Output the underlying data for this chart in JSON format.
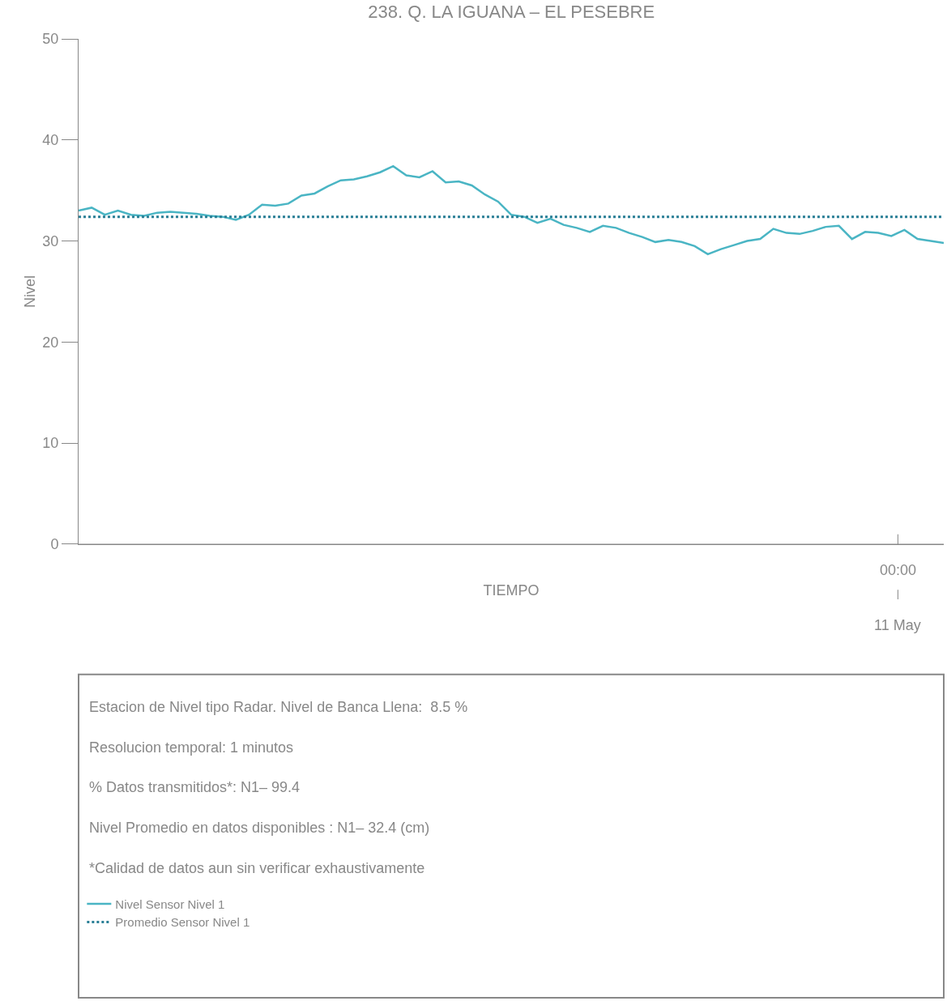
{
  "chart_data": {
    "type": "line",
    "title": "238. Q. LA IGUANA – EL PESEBRE",
    "xlabel": "TIEMPO",
    "ylabel": "Nivel",
    "categories": [
      null,
      null,
      null,
      null,
      null,
      null,
      null,
      null,
      null,
      null,
      null,
      null,
      null,
      null,
      null,
      null,
      null,
      null,
      null,
      null,
      null,
      null,
      null,
      null,
      null,
      null,
      null,
      null,
      null,
      null,
      null,
      null,
      null,
      null,
      null,
      null,
      null,
      null,
      null,
      null,
      null,
      null,
      null,
      null,
      null,
      null,
      null,
      null,
      null,
      null,
      null,
      null,
      null,
      null,
      null,
      null,
      null,
      null,
      null,
      null,
      null,
      null,
      null,
      null,
      null,
      null,
      null
    ],
    "series": [
      {
        "name": "Nivel Sensor Nivel 1",
        "color": "#4ab5c4",
        "values": [
          33.0,
          33.3,
          32.6,
          33.0,
          32.6,
          32.5,
          32.8,
          32.9,
          32.8,
          32.7,
          32.5,
          32.4,
          32.1,
          32.6,
          33.6,
          33.5,
          33.7,
          34.5,
          34.7,
          35.4,
          36.0,
          36.1,
          36.4,
          36.8,
          37.4,
          36.5,
          36.3,
          36.9,
          35.8,
          35.9,
          35.5,
          34.6,
          33.9,
          32.6,
          32.4,
          31.8,
          32.2,
          31.6,
          31.3,
          30.9,
          31.5,
          31.3,
          30.8,
          30.4,
          29.9,
          30.1,
          29.9,
          29.5,
          28.7,
          29.2,
          29.6,
          30.0,
          30.2,
          31.2,
          30.8,
          30.7,
          31.0,
          31.4,
          31.5,
          30.2,
          30.9,
          30.8,
          30.5,
          31.1,
          30.2,
          30.0,
          29.8
        ]
      }
    ],
    "ref_lines": [
      {
        "axis": "y",
        "value": 32.4,
        "label": "Promedio Sensor Nivel 1",
        "color": "#2a7f96",
        "line_style": "dotted"
      }
    ],
    "ylim": [
      0,
      50
    ],
    "yticks": [
      0,
      10,
      20,
      30,
      40,
      50
    ],
    "grid": false,
    "legend": "bottom",
    "marker": "none",
    "line_style": "solid",
    "annotations": [
      "00:00",
      "11 May",
      "Estacion de Nivel tipo Radar. Nivel de Banca Llena:  8.5 %",
      "Resolucion temporal: 1 minutos",
      "% Datos transmitidos*: N1– 99.4",
      "Nivel Promedio en datos disponibles : N1– 32.4 (cm)",
      "*Calidad de datos aun sin verificar exhaustivamente"
    ]
  }
}
